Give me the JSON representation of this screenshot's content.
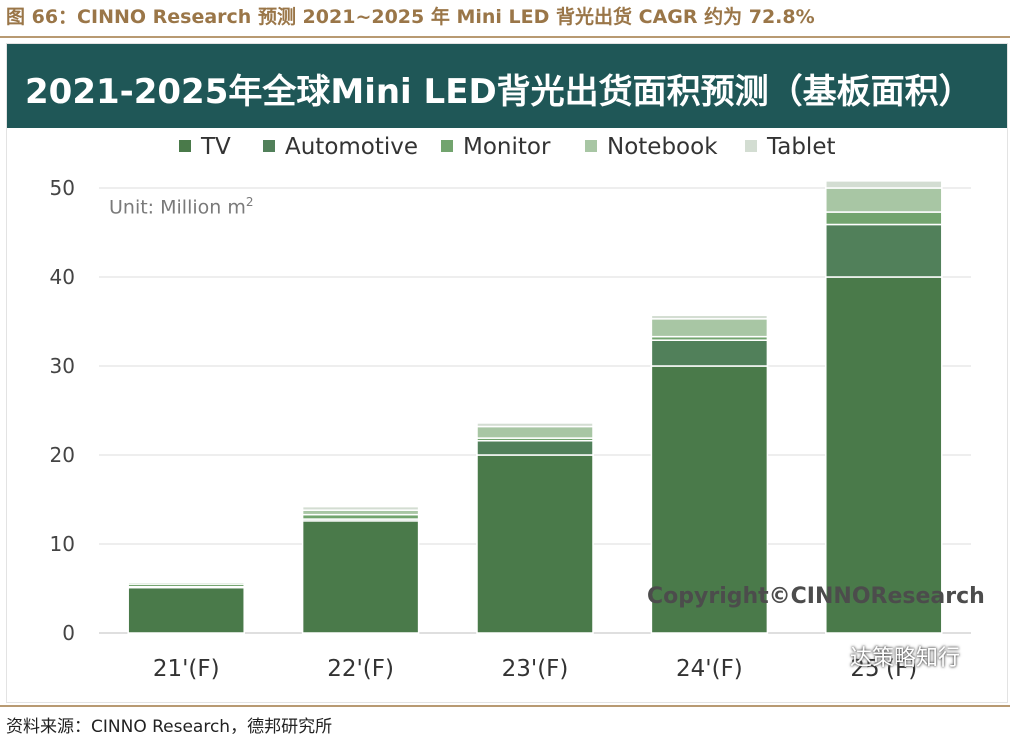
{
  "figure_caption": "图 66：CINNO Research 预测 2021~2025 年 Mini LED 背光出货 CAGR 约为 72.8%",
  "source_note": "资料来源：CINNO Research，德邦研究所",
  "watermark": "达策略知行",
  "colors": {
    "title_bar": "#1f5757",
    "caption": "#9a7648",
    "tv": "#4a7a4a",
    "automotive": "#51805a",
    "monitor": "#72a46e",
    "notebook": "#a8c6a4",
    "tablet": "#d3ddd2"
  },
  "chart_data": {
    "type": "bar",
    "stacked": true,
    "title": "2021-2025年全球Mini LED背光出货面积预测（基板面积）",
    "unit_label": "Unit: Million m",
    "unit_sup": "2",
    "copyright": "Copyright©CINNOResearch",
    "categories": [
      "21'(F)",
      "22'(F)",
      "23'(F)",
      "24'(F)",
      "25'(F)"
    ],
    "series": [
      {
        "name": "TV",
        "values": [
          5.1,
          12.6,
          20.0,
          30.0,
          40.0
        ]
      },
      {
        "name": "Automotive",
        "values": [
          0.1,
          0.2,
          1.6,
          2.9,
          5.9
        ]
      },
      {
        "name": "Monitor",
        "values": [
          0.3,
          0.5,
          0.3,
          0.4,
          1.4
        ]
      },
      {
        "name": "Notebook",
        "values": [
          0.2,
          0.5,
          1.3,
          2.0,
          2.7
        ]
      },
      {
        "name": "Tablet",
        "values": [
          0.1,
          0.4,
          0.4,
          0.4,
          0.8
        ]
      }
    ],
    "ylim": [
      0,
      50
    ],
    "yticks": [
      0,
      10,
      20,
      30,
      40,
      50
    ],
    "grid": true,
    "legend_position": "top"
  }
}
